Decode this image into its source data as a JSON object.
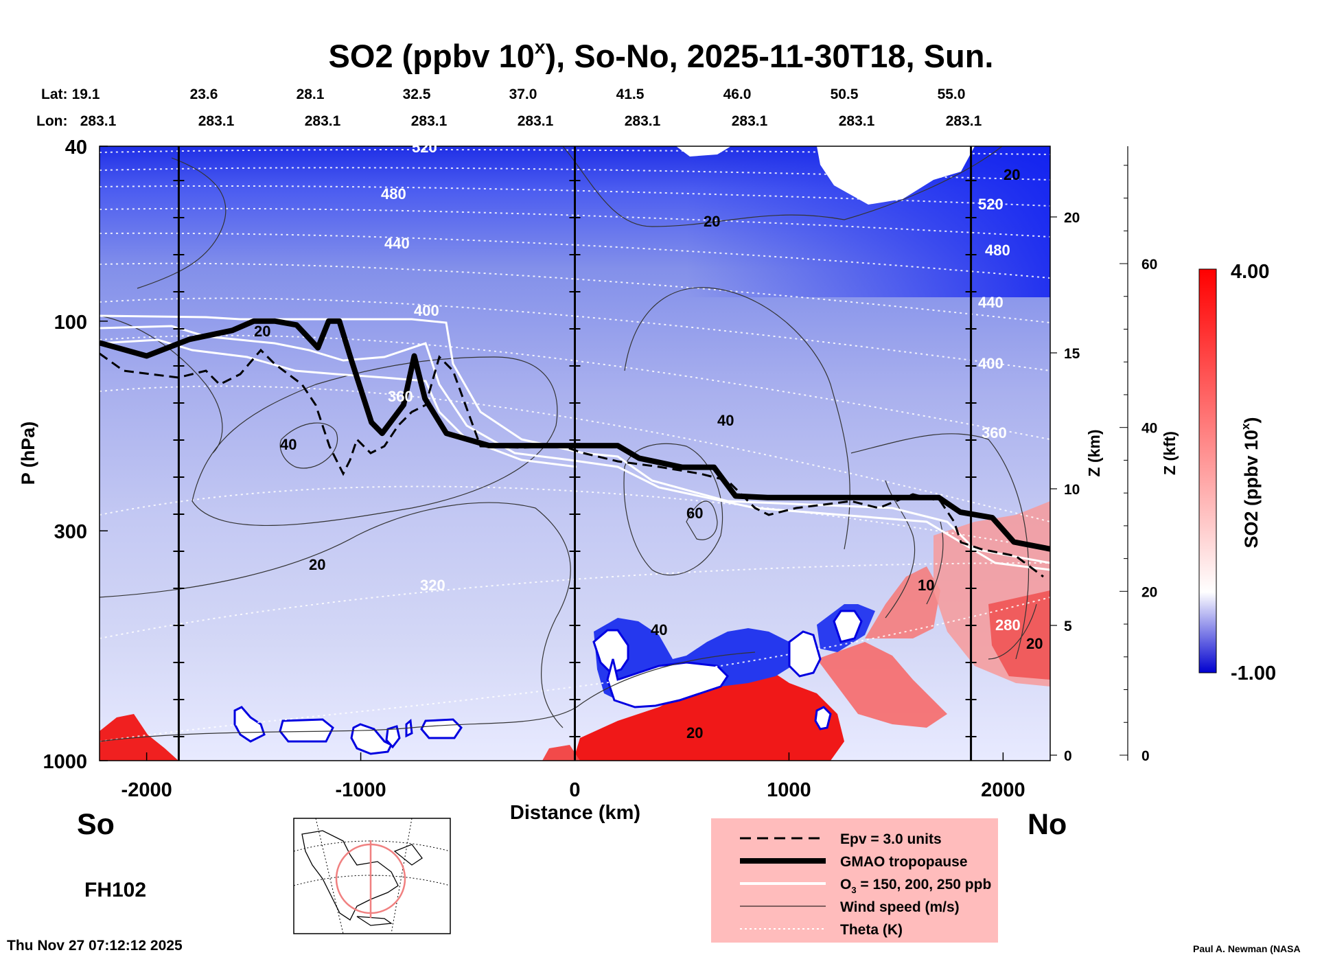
{
  "chart_data": {
    "type": "heatmap",
    "title_main": "SO2 (ppbv 10",
    "title_sup": "x",
    "title_rest": "), So-No, 2025-11-30T18, Sun.",
    "lat_label": "Lat:",
    "lon_label": "Lon:",
    "lat_values": [
      "19.1",
      "23.6",
      "28.1",
      "32.5",
      "37.0",
      "41.5",
      "46.0",
      "50.5",
      "55.0"
    ],
    "lon_values": [
      "283.1",
      "283.1",
      "283.1",
      "283.1",
      "283.1",
      "283.1",
      "283.1",
      "283.1",
      "283.1"
    ],
    "xlabel": "Distance (km)",
    "xlim": [
      -2220,
      2220
    ],
    "xticks": [
      -2000,
      -1000,
      0,
      1000,
      2000
    ],
    "xtick_labels": [
      "-2000",
      "-1000",
      "0",
      "1000",
      "2000"
    ],
    "ylabel": "P (hPa)",
    "ylim": [
      1000,
      40
    ],
    "yscale": "log",
    "yticks": [
      40,
      100,
      300,
      1000
    ],
    "ytick_labels": [
      "40",
      "100",
      "300",
      "1000"
    ],
    "z_km_label": "Z (km)",
    "z_km_ticks": [
      0,
      5,
      10,
      15,
      20
    ],
    "z_kft_label": "Z (kft)",
    "z_kft_ticks": [
      0,
      20,
      40,
      60
    ],
    "colorbar": {
      "label_main": "SO2 (ppbv 10",
      "label_sup": "x",
      "label_end": ")",
      "max_label": "4.00",
      "min_label": "-1.00",
      "min": -1.0,
      "max": 4.0
    },
    "section_lines_km": [
      -1850,
      0,
      1850
    ],
    "tropopause_hpa_by_km": [
      [
        -2220,
        112
      ],
      [
        -2000,
        120
      ],
      [
        -1800,
        110
      ],
      [
        -1600,
        105
      ],
      [
        -1500,
        100
      ],
      [
        -1400,
        100
      ],
      [
        -1300,
        102
      ],
      [
        -1200,
        115
      ],
      [
        -1150,
        100
      ],
      [
        -1100,
        100
      ],
      [
        -1050,
        120
      ],
      [
        -950,
        170
      ],
      [
        -900,
        180
      ],
      [
        -800,
        155
      ],
      [
        -750,
        120
      ],
      [
        -700,
        150
      ],
      [
        -600,
        180
      ],
      [
        -400,
        192
      ],
      [
        -200,
        192
      ],
      [
        0,
        192
      ],
      [
        200,
        192
      ],
      [
        300,
        205
      ],
      [
        500,
        215
      ],
      [
        650,
        215
      ],
      [
        750,
        250
      ],
      [
        900,
        252
      ],
      [
        1300,
        252
      ],
      [
        1700,
        252
      ],
      [
        1800,
        272
      ],
      [
        1950,
        280
      ],
      [
        2050,
        318
      ],
      [
        2220,
        330
      ]
    ],
    "theta_contours_K": [
      "520",
      "480",
      "440",
      "400",
      "360",
      "320",
      "280",
      "520",
      "480",
      "440",
      "400",
      "360"
    ],
    "wind_contours_ms": [
      "20",
      "40",
      "20",
      "20",
      "40",
      "60",
      "40",
      "20",
      "20",
      "20",
      "10"
    ],
    "map_inset": "Northern Hemisphere section map",
    "left_label": "So",
    "right_label": "No",
    "forecast_hour": "FH102",
    "timestamp": "Thu Nov 27 07:12:12 2025",
    "credit": "Paul A. Newman (NASA",
    "legend": [
      {
        "label": "Epv = 3.0 units",
        "style": "dashed"
      },
      {
        "label": "GMAO tropopause",
        "style": "thick"
      },
      {
        "label": "O",
        "sub": "3",
        "rest": " = 150, 200, 250 ppb",
        "style": "white"
      },
      {
        "label": "Wind speed (m/s)",
        "style": "thin"
      },
      {
        "label": "Theta (K)",
        "style": "dotted"
      }
    ],
    "colors": {
      "neg": "#0000e0",
      "zero": "#ffffff",
      "pos": "#ff0000",
      "legend_bg": "#ffbcbc"
    }
  }
}
